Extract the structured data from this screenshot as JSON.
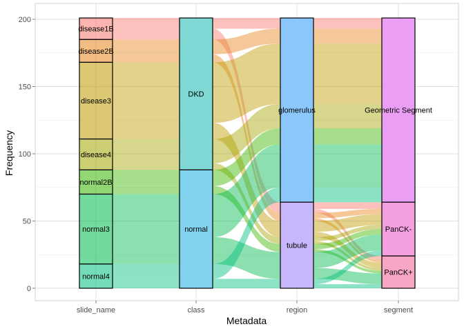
{
  "chart_data": {
    "type": "alluvial",
    "xlabel": "Metadata",
    "ylabel": "Frequency",
    "axes": [
      "slide_name",
      "class",
      "region",
      "segment"
    ],
    "yticks": [
      0,
      50,
      100,
      150,
      200
    ],
    "ylim": [
      0,
      201
    ],
    "grid": true,
    "strata": {
      "slide_name": [
        {
          "label": "disease1B",
          "count": 16,
          "color": "#F8766D"
        },
        {
          "label": "disease2B",
          "count": 17,
          "color": "#E7861B"
        },
        {
          "label": "disease3",
          "count": 57,
          "color": "#C09B00"
        },
        {
          "label": "disease4",
          "count": 23,
          "color": "#A3A500"
        },
        {
          "label": "normal2B",
          "count": 18,
          "color": "#39B600"
        },
        {
          "label": "normal3",
          "count": 52,
          "color": "#00BB4E"
        },
        {
          "label": "normal4",
          "count": 18,
          "color": "#00BF7D"
        }
      ],
      "class": [
        {
          "label": "DKD",
          "count": 113
        },
        {
          "label": "normal",
          "count": 88
        }
      ],
      "region": [
        {
          "label": "glomerulus",
          "count": 137
        },
        {
          "label": "tubule",
          "count": 64
        }
      ],
      "segment": [
        {
          "label": "Geometric Segment",
          "count": 137
        },
        {
          "label": "PanCK-",
          "count": 40
        },
        {
          "label": "PanCK+",
          "count": 24
        }
      ]
    },
    "flows": [
      {
        "slide_name": "disease1B",
        "class": "DKD",
        "region": "glomerulus",
        "segment": "Geometric Segment",
        "count": 8
      },
      {
        "slide_name": "disease1B",
        "class": "DKD",
        "region": "tubule",
        "segment": "PanCK-",
        "count": 5
      },
      {
        "slide_name": "disease1B",
        "class": "DKD",
        "region": "tubule",
        "segment": "PanCK+",
        "count": 3
      },
      {
        "slide_name": "disease2B",
        "class": "DKD",
        "region": "glomerulus",
        "segment": "Geometric Segment",
        "count": 11
      },
      {
        "slide_name": "disease2B",
        "class": "DKD",
        "region": "tubule",
        "segment": "PanCK-",
        "count": 4
      },
      {
        "slide_name": "disease2B",
        "class": "DKD",
        "region": "tubule",
        "segment": "PanCK+",
        "count": 2
      },
      {
        "slide_name": "disease3",
        "class": "DKD",
        "region": "glomerulus",
        "segment": "Geometric Segment",
        "count": 45
      },
      {
        "slide_name": "disease3",
        "class": "DKD",
        "region": "tubule",
        "segment": "PanCK-",
        "count": 8
      },
      {
        "slide_name": "disease3",
        "class": "DKD",
        "region": "tubule",
        "segment": "PanCK+",
        "count": 4
      },
      {
        "slide_name": "disease4",
        "class": "DKD",
        "region": "glomerulus",
        "segment": "Geometric Segment",
        "count": 18
      },
      {
        "slide_name": "disease4",
        "class": "DKD",
        "region": "tubule",
        "segment": "PanCK-",
        "count": 3
      },
      {
        "slide_name": "disease4",
        "class": "DKD",
        "region": "tubule",
        "segment": "PanCK+",
        "count": 2
      },
      {
        "slide_name": "normal2B",
        "class": "normal",
        "region": "glomerulus",
        "segment": "Geometric Segment",
        "count": 12
      },
      {
        "slide_name": "normal2B",
        "class": "normal",
        "region": "tubule",
        "segment": "PanCK-",
        "count": 4
      },
      {
        "slide_name": "normal2B",
        "class": "normal",
        "region": "tubule",
        "segment": "PanCK+",
        "count": 2
      },
      {
        "slide_name": "normal3",
        "class": "normal",
        "region": "glomerulus",
        "segment": "Geometric Segment",
        "count": 32
      },
      {
        "slide_name": "normal3",
        "class": "normal",
        "region": "tubule",
        "segment": "PanCK-",
        "count": 12
      },
      {
        "slide_name": "normal3",
        "class": "normal",
        "region": "tubule",
        "segment": "PanCK+",
        "count": 8
      },
      {
        "slide_name": "normal4",
        "class": "normal",
        "region": "glomerulus",
        "segment": "Geometric Segment",
        "count": 11
      },
      {
        "slide_name": "normal4",
        "class": "normal",
        "region": "tubule",
        "segment": "PanCK-",
        "count": 4
      },
      {
        "slide_name": "normal4",
        "class": "normal",
        "region": "tubule",
        "segment": "PanCK+",
        "count": 3
      }
    ]
  }
}
